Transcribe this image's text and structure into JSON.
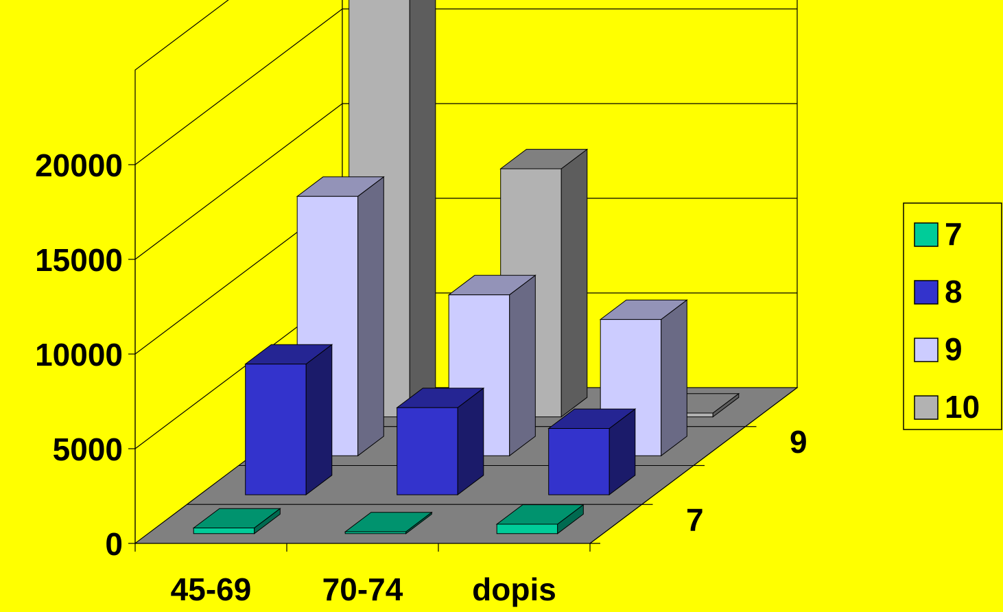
{
  "chart_data": {
    "type": "bar",
    "subtype": "3d-column-depth",
    "title": "",
    "xlabel": "",
    "ylabel": "",
    "categories": [
      "45-69",
      "70-74",
      "dopis"
    ],
    "depth_tick_labels": [
      "7",
      "9"
    ],
    "y_ticks": [
      "0",
      "5000",
      "10000",
      "15000",
      "20000"
    ],
    "ylim": [
      0,
      25000
    ],
    "grid": true,
    "legend_position": "right",
    "series": [
      {
        "name": "7",
        "values": [
          300,
          100,
          500
        ],
        "color": "#00CC99"
      },
      {
        "name": "8",
        "values": [
          6900,
          4600,
          3500
        ],
        "color": "#3333CC"
      },
      {
        "name": "9",
        "values": [
          13700,
          8500,
          7200
        ],
        "color": "#CCCCFF"
      },
      {
        "name": "10",
        "values": [
          24400,
          13100,
          200
        ],
        "color": "#B2B2B2"
      }
    ],
    "wall_color": "#FFFF00",
    "floor_color": "#808080"
  }
}
